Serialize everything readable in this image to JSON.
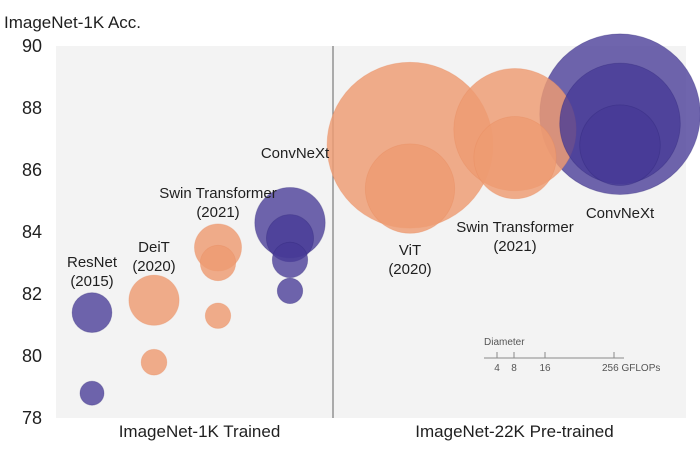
{
  "chart_data": {
    "type": "scatter",
    "title": "ImageNet-1K Acc.",
    "ylabel": "ImageNet-1K Acc.",
    "ylim": [
      78,
      90
    ],
    "yticks": [
      78,
      80,
      82,
      84,
      86,
      88,
      90
    ],
    "grid": false,
    "colors": {
      "orange": "#ee9b72",
      "purple": "#473a96",
      "background": "#f3f3f3",
      "divider": "#7a7a7a"
    },
    "panels": [
      {
        "name": "ImageNet-1K Trained",
        "xlabel": "ImageNet-1K Trained"
      },
      {
        "name": "ImageNet-22K Pre-trained",
        "xlabel": "ImageNet-22K Pre-trained"
      }
    ],
    "series": [
      {
        "name": "ResNet",
        "label_lines": [
          "ResNet",
          "(2015)"
        ],
        "panel": 0,
        "color": "purple",
        "points": [
          {
            "acc": 78.8,
            "gflops": 4
          },
          {
            "acc": 81.4,
            "gflops": 11
          }
        ]
      },
      {
        "name": "DeiT",
        "label_lines": [
          "DeiT",
          "(2020)"
        ],
        "panel": 0,
        "color": "orange",
        "points": [
          {
            "acc": 79.8,
            "gflops": 4.6
          },
          {
            "acc": 81.8,
            "gflops": 17.5
          }
        ]
      },
      {
        "name": "Swin Transformer",
        "label_lines": [
          "Swin Transformer",
          "(2021)"
        ],
        "panel": 0,
        "color": "orange",
        "points": [
          {
            "acc": 81.3,
            "gflops": 4.5
          },
          {
            "acc": 83.0,
            "gflops": 8.7
          },
          {
            "acc": 83.5,
            "gflops": 15.4
          }
        ]
      },
      {
        "name": "ConvNeXt",
        "label_lines": [
          "ConvNeXt"
        ],
        "panel": 0,
        "color": "purple",
        "points": [
          {
            "acc": 82.1,
            "gflops": 4.5
          },
          {
            "acc": 83.1,
            "gflops": 8.7
          },
          {
            "acc": 83.8,
            "gflops": 15.4
          },
          {
            "acc": 84.3,
            "gflops": 34.4
          }
        ]
      },
      {
        "name": "ViT",
        "label_lines": [
          "ViT",
          "(2020)"
        ],
        "panel": 1,
        "color": "orange",
        "points": [
          {
            "acc": 85.4,
            "gflops": 55.5
          },
          {
            "acc": 86.8,
            "gflops": 191.1
          }
        ]
      },
      {
        "name": "Swin Transformer",
        "label_lines": [
          "Swin Transformer",
          "(2021)"
        ],
        "panel": 1,
        "color": "orange",
        "points": [
          {
            "acc": 86.4,
            "gflops": 47
          },
          {
            "acc": 87.3,
            "gflops": 103.9
          }
        ]
      },
      {
        "name": "ConvNeXt",
        "label_lines": [
          "ConvNeXt"
        ],
        "panel": 1,
        "color": "purple",
        "points": [
          {
            "acc": 86.8,
            "gflops": 45.1
          },
          {
            "acc": 87.5,
            "gflops": 101
          },
          {
            "acc": 87.8,
            "gflops": 179
          }
        ]
      }
    ],
    "size_legend": {
      "title": "Diameter",
      "values": [
        4,
        8,
        16,
        256
      ],
      "unit": "GFLOPs",
      "last_label": "256 GFLOPs"
    }
  }
}
